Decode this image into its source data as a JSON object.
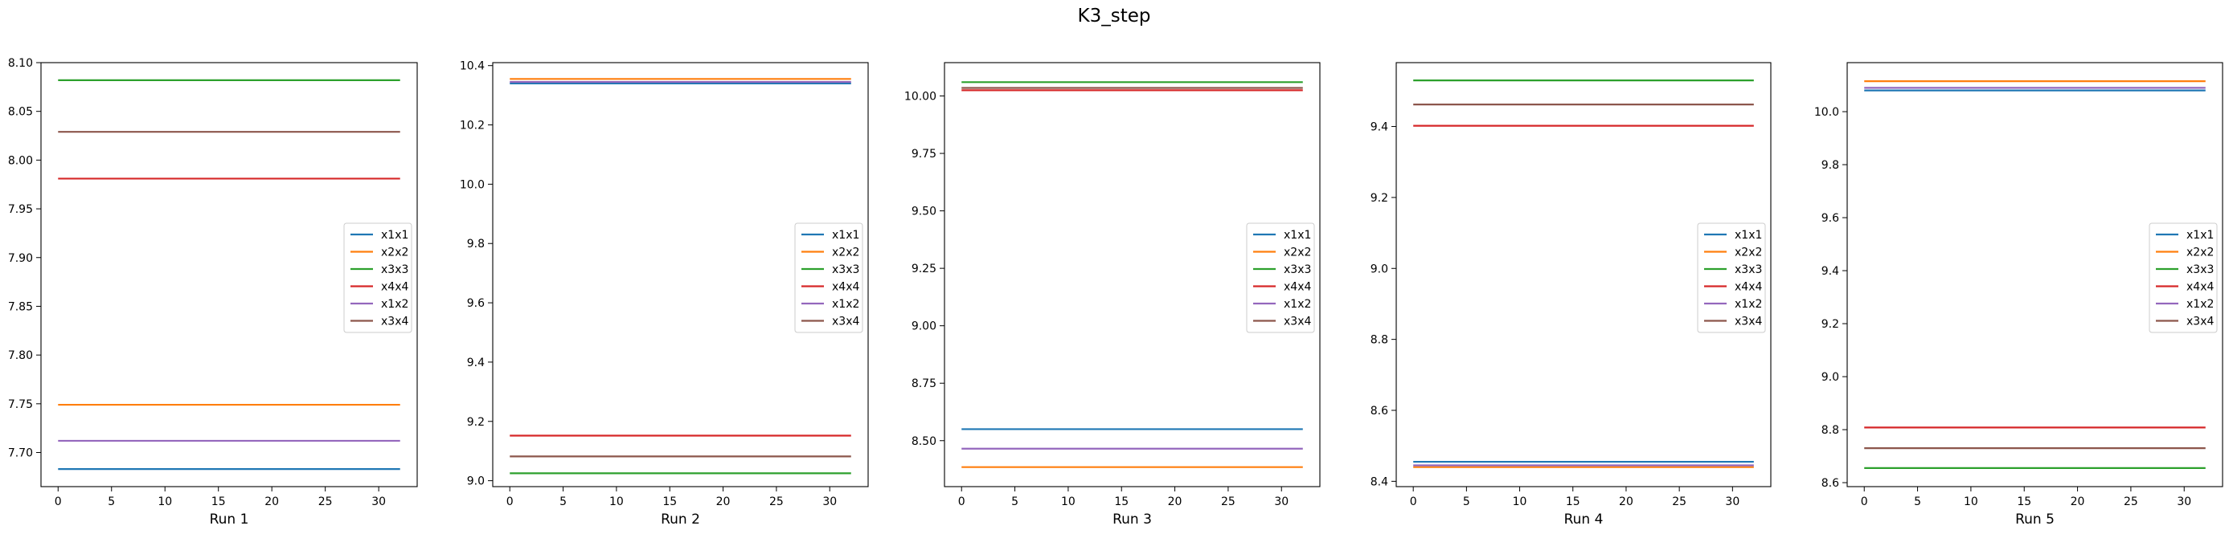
{
  "figure": {
    "title": "K3_step"
  },
  "colors": {
    "x1x1": "#1f77b4",
    "x2x2": "#ff7f0e",
    "x3x3": "#2ca02c",
    "x4x4": "#d62728",
    "x1x2": "#9467bd",
    "x3x4": "#8c564b"
  },
  "chart_data": [
    {
      "type": "line",
      "xlabel": "Run 1",
      "x": [
        0,
        32
      ],
      "xticks": [
        0,
        5,
        10,
        15,
        20,
        25,
        30
      ],
      "ylim": [
        7.665,
        8.1
      ],
      "yticks": [
        "7.70",
        "7.75",
        "7.80",
        "7.85",
        "7.90",
        "7.95",
        "8.00",
        "8.05",
        "8.10"
      ],
      "legend": "center-right",
      "series": [
        {
          "name": "x1x1",
          "values": [
            7.683,
            7.683
          ]
        },
        {
          "name": "x2x2",
          "values": [
            7.749,
            7.749
          ]
        },
        {
          "name": "x3x3",
          "values": [
            8.082,
            8.082
          ]
        },
        {
          "name": "x4x4",
          "values": [
            7.981,
            7.981
          ]
        },
        {
          "name": "x1x2",
          "values": [
            7.712,
            7.712
          ]
        },
        {
          "name": "x3x4",
          "values": [
            8.029,
            8.029
          ]
        }
      ]
    },
    {
      "type": "line",
      "xlabel": "Run 2",
      "x": [
        0,
        32
      ],
      "xticks": [
        0,
        5,
        10,
        15,
        20,
        25,
        30
      ],
      "ylim": [
        8.98,
        10.41
      ],
      "yticks": [
        "9.0",
        "9.2",
        "9.4",
        "9.6",
        "9.8",
        "10.0",
        "10.2",
        "10.4"
      ],
      "legend": "center-right",
      "series": [
        {
          "name": "x1x1",
          "values": [
            10.34,
            10.34
          ]
        },
        {
          "name": "x2x2",
          "values": [
            10.355,
            10.355
          ]
        },
        {
          "name": "x3x3",
          "values": [
            9.025,
            9.025
          ]
        },
        {
          "name": "x4x4",
          "values": [
            9.152,
            9.152
          ]
        },
        {
          "name": "x1x2",
          "values": [
            10.345,
            10.345
          ]
        },
        {
          "name": "x3x4",
          "values": [
            9.082,
            9.082
          ]
        }
      ]
    },
    {
      "type": "line",
      "xlabel": "Run 3",
      "x": [
        0,
        32
      ],
      "xticks": [
        0,
        5,
        10,
        15,
        20,
        25,
        30
      ],
      "ylim": [
        8.3,
        10.145
      ],
      "yticks": [
        "8.50",
        "8.75",
        "9.00",
        "9.25",
        "9.50",
        "9.75",
        "10.00"
      ],
      "legend": "center-right",
      "series": [
        {
          "name": "x1x1",
          "values": [
            8.55,
            8.55
          ]
        },
        {
          "name": "x2x2",
          "values": [
            8.385,
            8.385
          ]
        },
        {
          "name": "x3x3",
          "values": [
            10.06,
            10.06
          ]
        },
        {
          "name": "x4x4",
          "values": [
            10.025,
            10.025
          ]
        },
        {
          "name": "x1x2",
          "values": [
            8.465,
            8.465
          ]
        },
        {
          "name": "x3x4",
          "values": [
            10.035,
            10.035
          ]
        }
      ]
    },
    {
      "type": "line",
      "xlabel": "Run 4",
      "x": [
        0,
        32
      ],
      "xticks": [
        0,
        5,
        10,
        15,
        20,
        25,
        30
      ],
      "ylim": [
        8.385,
        9.58
      ],
      "yticks": [
        "8.4",
        "8.6",
        "8.8",
        "9.0",
        "9.2",
        "9.4"
      ],
      "legend": "center-right",
      "series": [
        {
          "name": "x1x1",
          "values": [
            8.455,
            8.455
          ]
        },
        {
          "name": "x2x2",
          "values": [
            8.44,
            8.44
          ]
        },
        {
          "name": "x3x3",
          "values": [
            9.53,
            9.53
          ]
        },
        {
          "name": "x4x4",
          "values": [
            9.402,
            9.402
          ]
        },
        {
          "name": "x1x2",
          "values": [
            8.445,
            8.445
          ]
        },
        {
          "name": "x3x4",
          "values": [
            9.462,
            9.462
          ]
        }
      ]
    },
    {
      "type": "line",
      "xlabel": "Run 5",
      "x": [
        0,
        32
      ],
      "xticks": [
        0,
        5,
        10,
        15,
        20,
        25,
        30
      ],
      "ylim": [
        8.585,
        10.185
      ],
      "yticks": [
        "8.6",
        "8.8",
        "9.0",
        "9.2",
        "9.4",
        "9.6",
        "9.8",
        "10.0"
      ],
      "legend": "center-right",
      "series": [
        {
          "name": "x1x1",
          "values": [
            10.08,
            10.08
          ]
        },
        {
          "name": "x2x2",
          "values": [
            10.115,
            10.115
          ]
        },
        {
          "name": "x3x3",
          "values": [
            8.655,
            8.655
          ]
        },
        {
          "name": "x4x4",
          "values": [
            8.808,
            8.808
          ]
        },
        {
          "name": "x1x2",
          "values": [
            10.09,
            10.09
          ]
        },
        {
          "name": "x3x4",
          "values": [
            8.73,
            8.73
          ]
        }
      ]
    }
  ]
}
